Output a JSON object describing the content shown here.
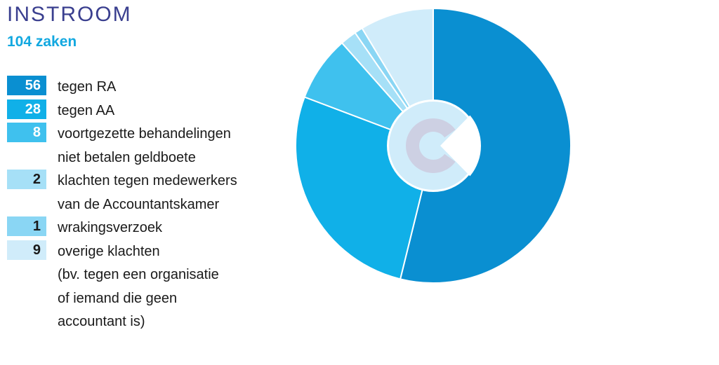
{
  "header": {
    "title": "INSTROOM",
    "subtitle": "104 zaken"
  },
  "legend": [
    {
      "value": "56",
      "label_lines": [
        "tegen RA"
      ],
      "color": "#0a8fd1",
      "text_color": "#ffffff"
    },
    {
      "value": "28",
      "label_lines": [
        "tegen AA"
      ],
      "color": "#10b0e8",
      "text_color": "#ffffff"
    },
    {
      "value": "8",
      "label_lines": [
        "voortgezette behandelingen",
        "niet betalen geldboete"
      ],
      "color": "#3fc1ee",
      "text_color": "#ffffff"
    },
    {
      "value": "2",
      "label_lines": [
        "klachten tegen medewerkers",
        "van de Accountantskamer"
      ],
      "color": "#a6e0f7",
      "text_color": "#1a1a1a"
    },
    {
      "value": "1",
      "label_lines": [
        "wrakingsverzoek"
      ],
      "color": "#8ad6f4",
      "text_color": "#1a1a1a"
    },
    {
      "value": "9",
      "label_lines": [
        "overige klachten",
        "(bv. tegen een organisatie",
        "of iemand die geen",
        "accountant is)"
      ],
      "color": "#d0ecfa",
      "text_color": "#1a1a1a"
    }
  ],
  "chart_data": {
    "type": "pie",
    "title": "INSTROOM",
    "subtitle": "104 zaken",
    "total": 104,
    "slices": [
      {
        "label": "tegen RA",
        "value": 56,
        "color": "#0a8fd1"
      },
      {
        "label": "tegen AA",
        "value": 28,
        "color": "#10b0e8"
      },
      {
        "label": "voortgezette behandelingen niet betalen geldboete",
        "value": 8,
        "color": "#3fc1ee"
      },
      {
        "label": "klachten tegen medewerkers van de Accountantskamer",
        "value": 2,
        "color": "#a6e0f7"
      },
      {
        "label": "wrakingsverzoek",
        "value": 1,
        "color": "#8ad6f4"
      },
      {
        "label": "overige klachten (bv. tegen een organisatie of iemand die geen accountant is)",
        "value": 9,
        "color": "#d0ecfa"
      }
    ],
    "center_logo": {
      "ring_color": "#d0ecfa",
      "letter_color": "#cdd0e3",
      "icon": "c-logo-icon"
    }
  }
}
